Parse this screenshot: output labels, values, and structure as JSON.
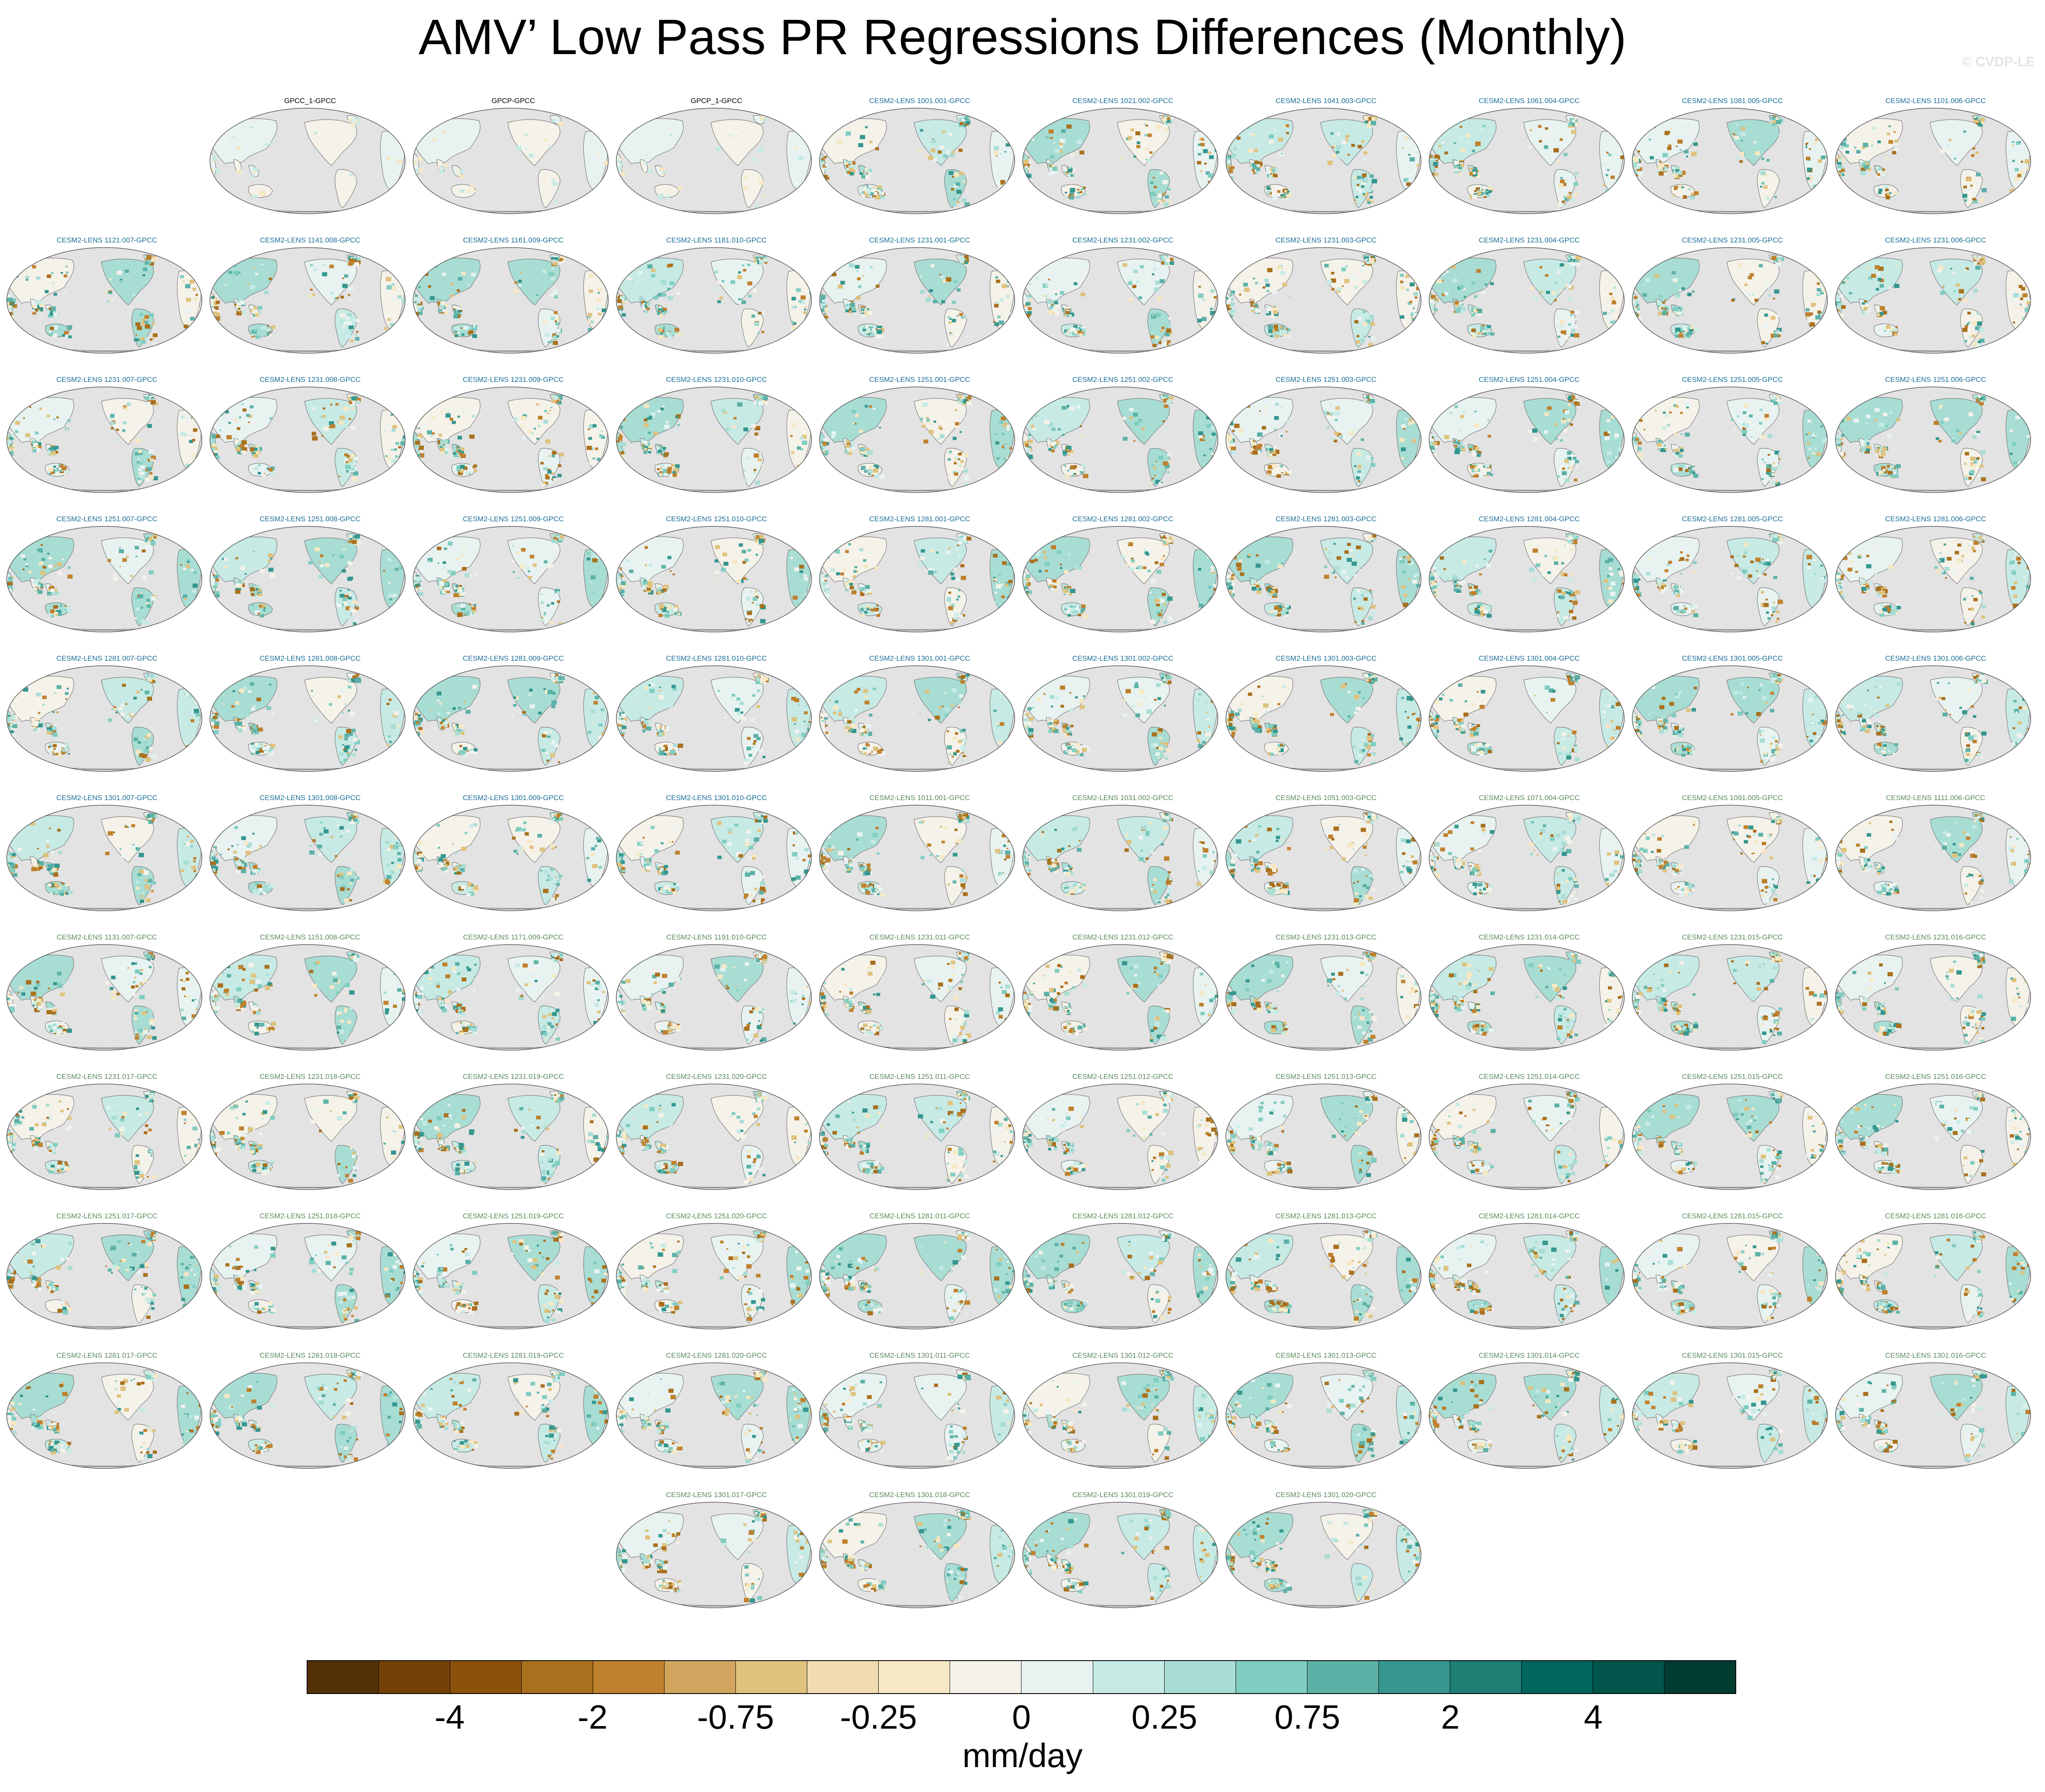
{
  "title": "AMV’ Low Pass PR Regressions Differences (Monthly)",
  "watermark": "© CVDP-LE",
  "colorbar": {
    "units": "mm/day",
    "tick_labels": [
      {
        "text": "-4",
        "boundary": 2
      },
      {
        "text": "-2",
        "boundary": 4
      },
      {
        "text": "-0.75",
        "boundary": 6
      },
      {
        "text": "-0.25",
        "boundary": 8
      },
      {
        "text": "0",
        "boundary": 10
      },
      {
        "text": "0.25",
        "boundary": 12
      },
      {
        "text": "0.75",
        "boundary": 14
      },
      {
        "text": "2",
        "boundary": 16
      },
      {
        "text": "4",
        "boundary": 18
      }
    ],
    "colors": [
      "#543005",
      "#744209",
      "#8c510a",
      "#a9701d",
      "#bf812d",
      "#d1a55e",
      "#dfc27d",
      "#f0dcb0",
      "#f6e8c3",
      "#f5f2ea",
      "#e8f3f1",
      "#c7eae5",
      "#a8ddd4",
      "#80cdc1",
      "#5cb1a7",
      "#35978f",
      "#1e7f75",
      "#01665e",
      "#01554b",
      "#003c30"
    ]
  },
  "panel_label_colors": {
    "obs": "#000000",
    "lens": "#1a6e96",
    "lens2": "#5a8a5a"
  },
  "panel_fill_colors": [
    "#f5f2ea",
    "#e8f3f1",
    "#c7eae5",
    "#a8ddd4",
    "#80cdc1",
    "#5cb1a7",
    "#35978f",
    "#f6e8c3",
    "#dfc27d",
    "#bf812d",
    "#a9701d"
  ],
  "panels": [
    {
      "label": "GPCC_1-GPCC",
      "type": "obs"
    },
    {
      "label": "GPCP-GPCC",
      "type": "obs"
    },
    {
      "label": "GPCP_1-GPCC",
      "type": "obs"
    },
    {
      "label": "CESM2-LENS 1001.001-GPCC",
      "type": "lens"
    },
    {
      "label": "CESM2-LENS 1021.002-GPCC",
      "type": "lens"
    },
    {
      "label": "CESM2-LENS 1041.003-GPCC",
      "type": "lens"
    },
    {
      "label": "CESM2-LENS 1061.004-GPCC",
      "type": "lens"
    },
    {
      "label": "CESM2-LENS 1081.005-GPCC",
      "type": "lens"
    },
    {
      "label": "CESM2-LENS 1101.006-GPCC",
      "type": "lens"
    },
    {
      "label": "CESM2-LENS 1121.007-GPCC",
      "type": "lens"
    },
    {
      "label": "CESM2-LENS 1141.008-GPCC",
      "type": "lens"
    },
    {
      "label": "CESM2-LENS 1161.009-GPCC",
      "type": "lens"
    },
    {
      "label": "CESM2-LENS 1181.010-GPCC",
      "type": "lens"
    },
    {
      "label": "CESM2-LENS 1231.001-GPCC",
      "type": "lens"
    },
    {
      "label": "CESM2-LENS 1231.002-GPCC",
      "type": "lens"
    },
    {
      "label": "CESM2-LENS 1231.003-GPCC",
      "type": "lens"
    },
    {
      "label": "CESM2-LENS 1231.004-GPCC",
      "type": "lens"
    },
    {
      "label": "CESM2-LENS 1231.005-GPCC",
      "type": "lens"
    },
    {
      "label": "CESM2-LENS 1231.006-GPCC",
      "type": "lens"
    },
    {
      "label": "CESM2-LENS 1231.007-GPCC",
      "type": "lens"
    },
    {
      "label": "CESM2-LENS 1231.008-GPCC",
      "type": "lens"
    },
    {
      "label": "CESM2-LENS 1231.009-GPCC",
      "type": "lens"
    },
    {
      "label": "CESM2-LENS 1231.010-GPCC",
      "type": "lens"
    },
    {
      "label": "CESM2-LENS 1251.001-GPCC",
      "type": "lens"
    },
    {
      "label": "CESM2-LENS 1251.002-GPCC",
      "type": "lens"
    },
    {
      "label": "CESM2-LENS 1251.003-GPCC",
      "type": "lens"
    },
    {
      "label": "CESM2-LENS 1251.004-GPCC",
      "type": "lens"
    },
    {
      "label": "CESM2-LENS 1251.005-GPCC",
      "type": "lens"
    },
    {
      "label": "CESM2-LENS 1251.006-GPCC",
      "type": "lens"
    },
    {
      "label": "CESM2-LENS 1251.007-GPCC",
      "type": "lens"
    },
    {
      "label": "CESM2-LENS 1251.008-GPCC",
      "type": "lens"
    },
    {
      "label": "CESM2-LENS 1251.009-GPCC",
      "type": "lens"
    },
    {
      "label": "CESM2-LENS 1251.010-GPCC",
      "type": "lens"
    },
    {
      "label": "CESM2-LENS 1281.001-GPCC",
      "type": "lens"
    },
    {
      "label": "CESM2-LENS 1281.002-GPCC",
      "type": "lens"
    },
    {
      "label": "CESM2-LENS 1281.003-GPCC",
      "type": "lens"
    },
    {
      "label": "CESM2-LENS 1281.004-GPCC",
      "type": "lens"
    },
    {
      "label": "CESM2-LENS 1281.005-GPCC",
      "type": "lens"
    },
    {
      "label": "CESM2-LENS 1281.006-GPCC",
      "type": "lens"
    },
    {
      "label": "CESM2-LENS 1281.007-GPCC",
      "type": "lens"
    },
    {
      "label": "CESM2-LENS 1281.008-GPCC",
      "type": "lens"
    },
    {
      "label": "CESM2-LENS 1281.009-GPCC",
      "type": "lens"
    },
    {
      "label": "CESM2-LENS 1281.010-GPCC",
      "type": "lens"
    },
    {
      "label": "CESM2-LENS 1301.001-GPCC",
      "type": "lens"
    },
    {
      "label": "CESM2-LENS 1301.002-GPCC",
      "type": "lens"
    },
    {
      "label": "CESM2-LENS 1301.003-GPCC",
      "type": "lens"
    },
    {
      "label": "CESM2-LENS 1301.004-GPCC",
      "type": "lens"
    },
    {
      "label": "CESM2-LENS 1301.005-GPCC",
      "type": "lens"
    },
    {
      "label": "CESM2-LENS 1301.006-GPCC",
      "type": "lens"
    },
    {
      "label": "CESM2-LENS 1301.007-GPCC",
      "type": "lens"
    },
    {
      "label": "CESM2-LENS 1301.008-GPCC",
      "type": "lens"
    },
    {
      "label": "CESM2-LENS 1301.009-GPCC",
      "type": "lens"
    },
    {
      "label": "CESM2-LENS 1301.010-GPCC",
      "type": "lens"
    },
    {
      "label": "CESM2-LENS 1011.001-GPCC",
      "type": "lens2"
    },
    {
      "label": "CESM2-LENS 1031.002-GPCC",
      "type": "lens2"
    },
    {
      "label": "CESM2-LENS 1051.003-GPCC",
      "type": "lens2"
    },
    {
      "label": "CESM2-LENS 1071.004-GPCC",
      "type": "lens2"
    },
    {
      "label": "CESM2-LENS 1091.005-GPCC",
      "type": "lens2"
    },
    {
      "label": "CESM2-LENS 1111.006-GPCC",
      "type": "lens2"
    },
    {
      "label": "CESM2-LENS 1131.007-GPCC",
      "type": "lens2"
    },
    {
      "label": "CESM2-LENS 1151.008-GPCC",
      "type": "lens2"
    },
    {
      "label": "CESM2-LENS 1171.009-GPCC",
      "type": "lens2"
    },
    {
      "label": "CESM2-LENS 1191.010-GPCC",
      "type": "lens2"
    },
    {
      "label": "CESM2-LENS 1231.011-GPCC",
      "type": "lens2"
    },
    {
      "label": "CESM2-LENS 1231.012-GPCC",
      "type": "lens2"
    },
    {
      "label": "CESM2-LENS 1231.013-GPCC",
      "type": "lens2"
    },
    {
      "label": "CESM2-LENS 1231.014-GPCC",
      "type": "lens2"
    },
    {
      "label": "CESM2-LENS 1231.015-GPCC",
      "type": "lens2"
    },
    {
      "label": "CESM2-LENS 1231.016-GPCC",
      "type": "lens2"
    },
    {
      "label": "CESM2-LENS 1231.017-GPCC",
      "type": "lens2"
    },
    {
      "label": "CESM2-LENS 1231.018-GPCC",
      "type": "lens2"
    },
    {
      "label": "CESM2-LENS 1231.019-GPCC",
      "type": "lens2"
    },
    {
      "label": "CESM2-LENS 1231.020-GPCC",
      "type": "lens2"
    },
    {
      "label": "CESM2-LENS 1251.011-GPCC",
      "type": "lens2"
    },
    {
      "label": "CESM2-LENS 1251.012-GPCC",
      "type": "lens2"
    },
    {
      "label": "CESM2-LENS 1251.013-GPCC",
      "type": "lens2"
    },
    {
      "label": "CESM2-LENS 1251.014-GPCC",
      "type": "lens2"
    },
    {
      "label": "CESM2-LENS 1251.015-GPCC",
      "type": "lens2"
    },
    {
      "label": "CESM2-LENS 1251.016-GPCC",
      "type": "lens2"
    },
    {
      "label": "CESM2-LENS 1251.017-GPCC",
      "type": "lens2"
    },
    {
      "label": "CESM2-LENS 1251.018-GPCC",
      "type": "lens2"
    },
    {
      "label": "CESM2-LENS 1251.019-GPCC",
      "type": "lens2"
    },
    {
      "label": "CESM2-LENS 1251.020-GPCC",
      "type": "lens2"
    },
    {
      "label": "CESM2-LENS 1281.011-GPCC",
      "type": "lens2"
    },
    {
      "label": "CESM2-LENS 1281.012-GPCC",
      "type": "lens2"
    },
    {
      "label": "CESM2-LENS 1281.013-GPCC",
      "type": "lens2"
    },
    {
      "label": "CESM2-LENS 1281.014-GPCC",
      "type": "lens2"
    },
    {
      "label": "CESM2-LENS 1281.015-GPCC",
      "type": "lens2"
    },
    {
      "label": "CESM2-LENS 1281.016-GPCC",
      "type": "lens2"
    },
    {
      "label": "CESM2-LENS 1281.017-GPCC",
      "type": "lens2"
    },
    {
      "label": "CESM2-LENS 1281.018-GPCC",
      "type": "lens2"
    },
    {
      "label": "CESM2-LENS 1281.019-GPCC",
      "type": "lens2"
    },
    {
      "label": "CESM2-LENS 1281.020-GPCC",
      "type": "lens2"
    },
    {
      "label": "CESM2-LENS 1301.011-GPCC",
      "type": "lens2"
    },
    {
      "label": "CESM2-LENS 1301.012-GPCC",
      "type": "lens2"
    },
    {
      "label": "CESM2-LENS 1301.013-GPCC",
      "type": "lens2"
    },
    {
      "label": "CESM2-LENS 1301.014-GPCC",
      "type": "lens2"
    },
    {
      "label": "CESM2-LENS 1301.015-GPCC",
      "type": "lens2"
    },
    {
      "label": "CESM2-LENS 1301.016-GPCC",
      "type": "lens2"
    },
    {
      "label": "CESM2-LENS 1301.017-GPCC",
      "type": "lens2"
    },
    {
      "label": "CESM2-LENS 1301.018-GPCC",
      "type": "lens2"
    },
    {
      "label": "CESM2-LENS 1301.019-GPCC",
      "type": "lens2"
    },
    {
      "label": "CESM2-LENS 1301.020-GPCC",
      "type": "lens2"
    }
  ]
}
